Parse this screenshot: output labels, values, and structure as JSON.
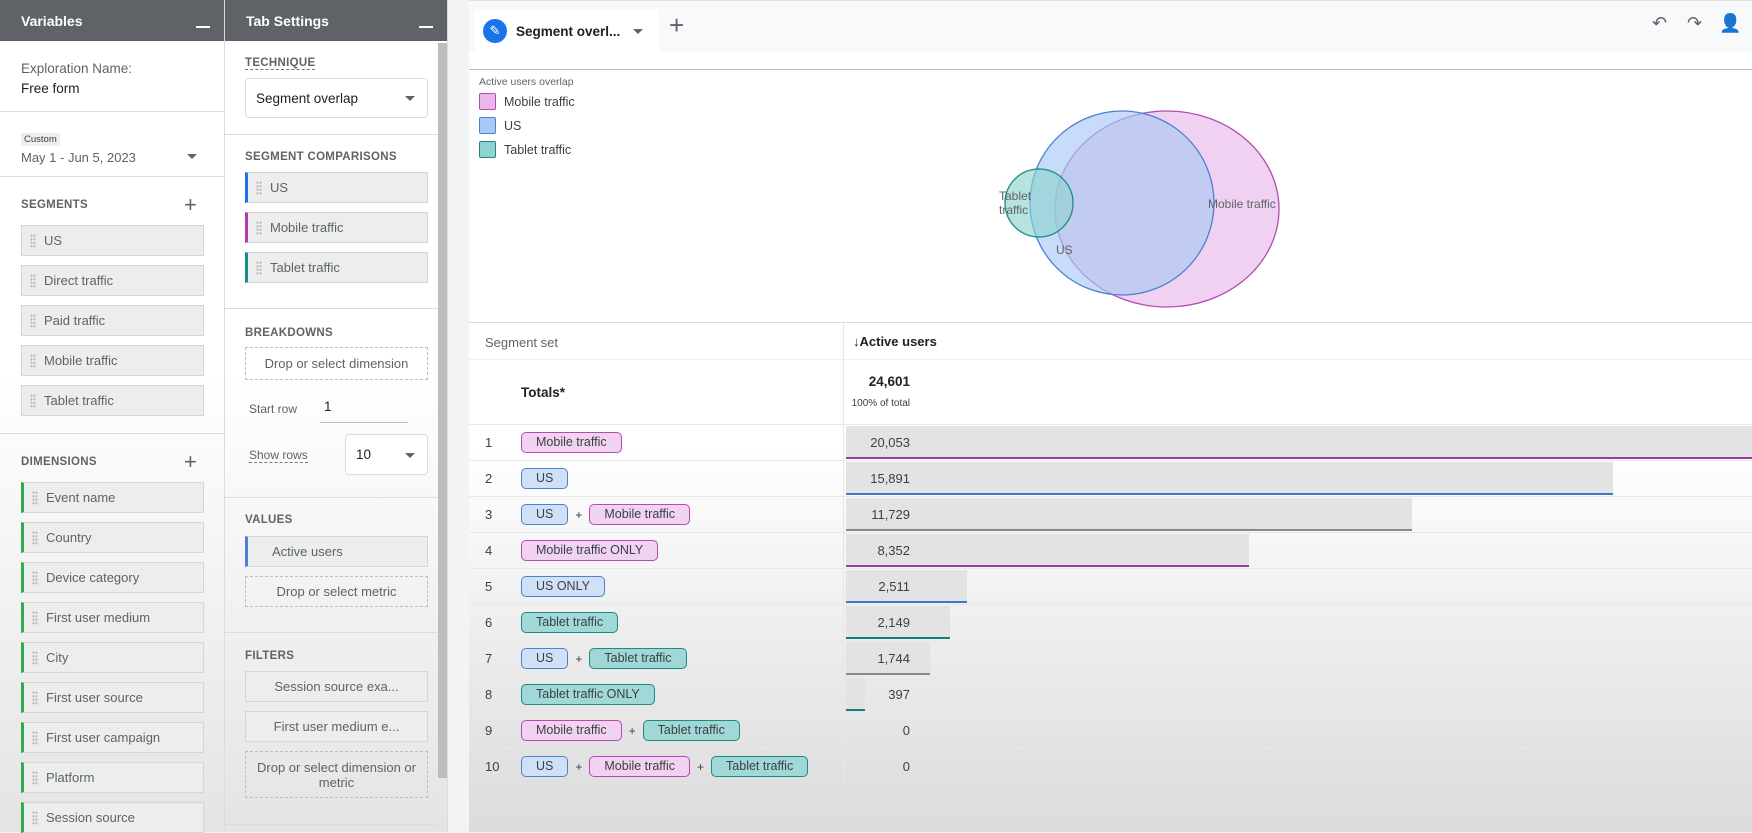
{
  "variables": {
    "title": "Variables",
    "exploration_label": "Exploration Name:",
    "exploration_name": "Free form",
    "date_chip": "Custom",
    "date_range": "May 1 - Jun 5, 2023",
    "segments_heading": "SEGMENTS",
    "segments": [
      "US",
      "Direct traffic",
      "Paid traffic",
      "Mobile traffic",
      "Tablet traffic"
    ],
    "dimensions_heading": "DIMENSIONS",
    "dimensions": [
      "Event name",
      "Country",
      "Device category",
      "First user medium",
      "City",
      "First user source",
      "First user campaign",
      "Platform",
      "Session source"
    ]
  },
  "tab_settings": {
    "title": "Tab Settings",
    "technique_label": "TECHNIQUE",
    "technique_value": "Segment overlap",
    "segment_comparisons_label": "SEGMENT COMPARISONS",
    "segment_comparisons": [
      {
        "label": "US",
        "color": "#1a73e8"
      },
      {
        "label": "Mobile traffic",
        "color": "#b03ab0"
      },
      {
        "label": "Tablet traffic",
        "color": "#12908a"
      }
    ],
    "breakdowns_label": "BREAKDOWNS",
    "breakdown_drop": "Drop or select dimension",
    "start_row_label": "Start row",
    "start_row_value": "1",
    "show_rows_label": "Show rows",
    "show_rows_value": "10",
    "values_label": "VALUES",
    "values": [
      "Active users"
    ],
    "metric_drop": "Drop or select metric",
    "filters_label": "FILTERS",
    "filters": [
      "Session source exa...",
      "First user medium e..."
    ],
    "filter_drop": "Drop or select dimension or metric"
  },
  "tab": {
    "name": "Segment overl...",
    "icon": "pencil-icon"
  },
  "toolbar": {
    "icons": [
      "undo-icon",
      "redo-icon",
      "share-user-icon"
    ]
  },
  "venn": {
    "title": "Active users overlap",
    "legend": [
      {
        "label": "Mobile traffic",
        "fill": "#e9b8e9",
        "stroke": "#b44bb4"
      },
      {
        "label": "US",
        "fill": "#a9c9f5",
        "stroke": "#4a82d0"
      },
      {
        "label": "Tablet traffic",
        "fill": "#8fd3d0",
        "stroke": "#1d8a85"
      }
    ],
    "labels": {
      "tablet": "Tablet traffic",
      "us": "US",
      "mobile": "Mobile traffic"
    }
  },
  "table": {
    "col_segment": "Segment set",
    "col_metric": "Active users",
    "totals_label": "Totals*",
    "totals_value": "24,601",
    "totals_pct": "100% of total",
    "total_number": 24601,
    "rows": [
      {
        "n": "1",
        "tags": [
          {
            "t": "Mobile traffic",
            "c": "m"
          }
        ],
        "value": "20,053",
        "num": 20053,
        "line": "#a03aa0"
      },
      {
        "n": "2",
        "tags": [
          {
            "t": "US",
            "c": "u"
          }
        ],
        "value": "15,891",
        "num": 15891,
        "line": "#3b78d0"
      },
      {
        "n": "3",
        "tags": [
          {
            "t": "US",
            "c": "u"
          },
          {
            "t": "Mobile traffic",
            "c": "m"
          }
        ],
        "value": "11,729",
        "num": 11729,
        "line": "#888888"
      },
      {
        "n": "4",
        "tags": [
          {
            "t": "Mobile traffic ONLY",
            "c": "m"
          }
        ],
        "value": "8,352",
        "num": 8352,
        "line": "#a03aa0"
      },
      {
        "n": "5",
        "tags": [
          {
            "t": "US ONLY",
            "c": "u"
          }
        ],
        "value": "2,511",
        "num": 2511,
        "line": "#3b78d0"
      },
      {
        "n": "6",
        "tags": [
          {
            "t": "Tablet traffic",
            "c": "t"
          }
        ],
        "value": "2,149",
        "num": 2149,
        "line": "#12807a"
      },
      {
        "n": "7",
        "tags": [
          {
            "t": "US",
            "c": "u"
          },
          {
            "t": "Tablet traffic",
            "c": "t"
          }
        ],
        "value": "1,744",
        "num": 1744,
        "line": "#888888"
      },
      {
        "n": "8",
        "tags": [
          {
            "t": "Tablet traffic ONLY",
            "c": "t"
          }
        ],
        "value": "397",
        "num": 397,
        "line": "#12807a"
      },
      {
        "n": "9",
        "tags": [
          {
            "t": "Mobile traffic",
            "c": "m"
          },
          {
            "t": "Tablet traffic",
            "c": "t"
          }
        ],
        "value": "0",
        "num": 0,
        "line": "#888888"
      },
      {
        "n": "10",
        "tags": [
          {
            "t": "US",
            "c": "u"
          },
          {
            "t": "Mobile traffic",
            "c": "m"
          },
          {
            "t": "Tablet traffic",
            "c": "t"
          }
        ],
        "value": "0",
        "num": 0,
        "line": "#888888"
      }
    ],
    "plus": "+"
  }
}
